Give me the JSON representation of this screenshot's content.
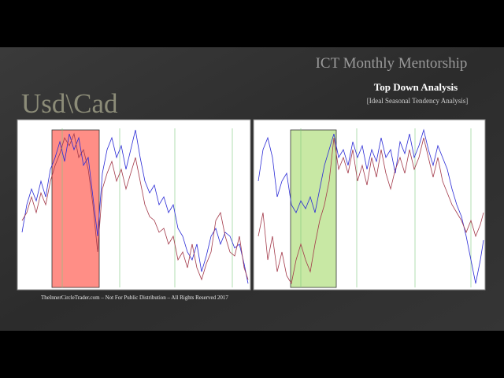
{
  "header": {
    "title": "ICT Monthly Mentorship",
    "subtitle": "Top Down Analysis",
    "caption": "[Ideal Seasonal Tendency Analysis]"
  },
  "slide": {
    "pair": "Usd\\Cad"
  },
  "footer": {
    "text": "TheInnerCircleTrader.com – Not For Public Distribution – All Rights Reserved 2017"
  }
}
